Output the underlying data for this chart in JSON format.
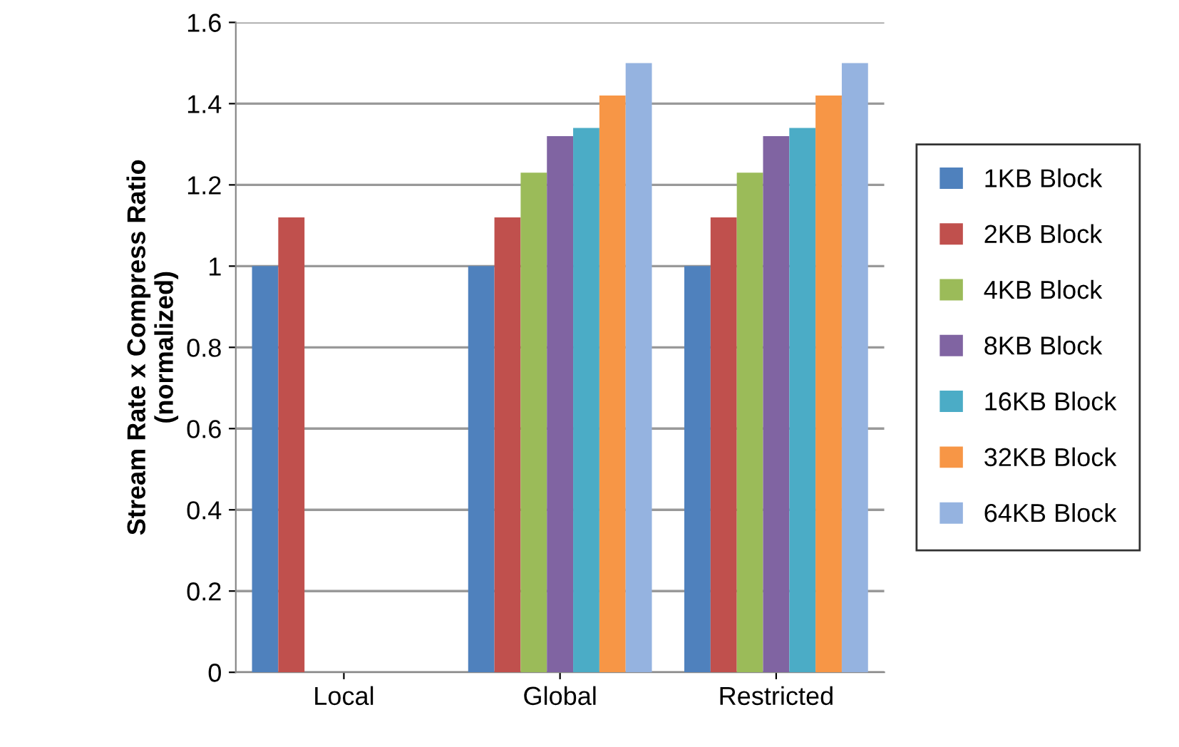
{
  "chart_data": {
    "type": "bar",
    "ylabel": "Stream Rate x Compress Ratio\n(normalized)",
    "categories": [
      "Local",
      "Global",
      "Restricted"
    ],
    "series": [
      {
        "name": "1KB Block",
        "color": "#4f81bd",
        "values": [
          1.0,
          1.0,
          1.0
        ]
      },
      {
        "name": "2KB Block",
        "color": "#c0504d",
        "values": [
          1.12,
          1.12,
          1.12
        ]
      },
      {
        "name": "4KB Block",
        "color": "#9bbb59",
        "values": [
          null,
          1.23,
          1.23
        ]
      },
      {
        "name": "8KB Block",
        "color": "#8064a2",
        "values": [
          null,
          1.32,
          1.32
        ]
      },
      {
        "name": "16KB Block",
        "color": "#4bacc6",
        "values": [
          null,
          1.34,
          1.34
        ]
      },
      {
        "name": "32KB Block",
        "color": "#f79646",
        "values": [
          null,
          1.42,
          1.42
        ]
      },
      {
        "name": "64KB Block",
        "color": "#95b3e0",
        "values": [
          null,
          1.5,
          1.5
        ]
      }
    ],
    "ylim": [
      0,
      1.6
    ],
    "yticks": [
      0,
      {
        "value": 0.2,
        "label": "0.2"
      },
      {
        "value": 0.4,
        "label": "0.4"
      },
      {
        "value": 0.6,
        "label": "0.6"
      },
      {
        "value": 0.8,
        "label": "0.8"
      },
      1,
      {
        "value": 1.2,
        "label": "1.2"
      },
      {
        "value": 1.4,
        "label": "1.4"
      },
      {
        "value": 1.6,
        "label": "1.6"
      }
    ],
    "grid": "y",
    "legend": "right"
  }
}
